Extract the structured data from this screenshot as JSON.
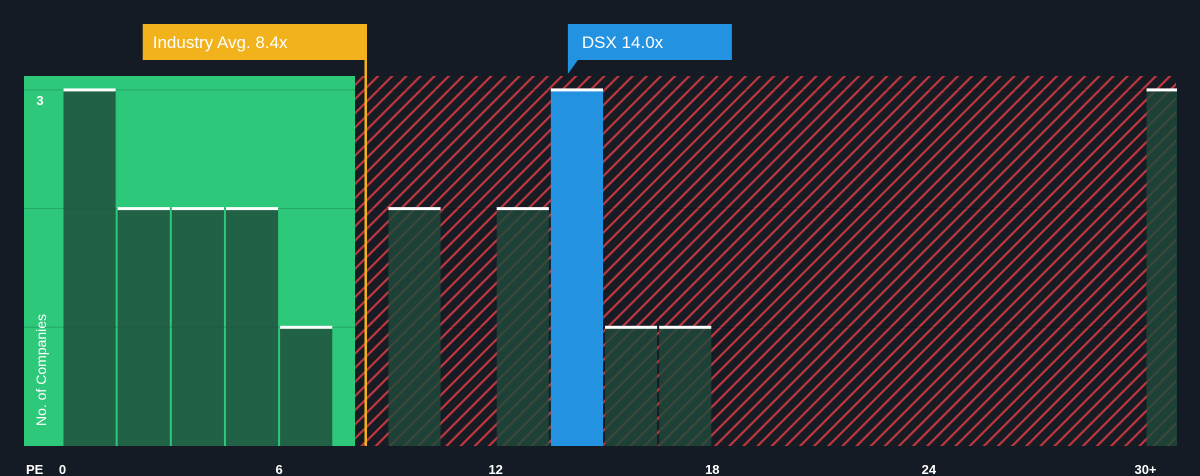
{
  "chart_data": {
    "type": "bar",
    "title": "",
    "xlabel": "PE",
    "ylabel": "No. of Companies",
    "x_tick_labels": [
      "0",
      "6",
      "12",
      "18",
      "24",
      "30+"
    ],
    "x_ticks": [
      0,
      6,
      12,
      18,
      24,
      30
    ],
    "y_tick_labels": [
      "3"
    ],
    "ylim": [
      0,
      3.1
    ],
    "xlim": [
      -0.6,
      30.9
    ],
    "grid": true,
    "bins": [
      {
        "x0": 0.0,
        "x1": 1.5,
        "count": 3
      },
      {
        "x0": 1.5,
        "x1": 3.0,
        "count": 2
      },
      {
        "x0": 3.0,
        "x1": 4.5,
        "count": 2
      },
      {
        "x0": 4.5,
        "x1": 6.0,
        "count": 2
      },
      {
        "x0": 6.0,
        "x1": 7.5,
        "count": 1
      },
      {
        "x0": 9.0,
        "x1": 10.5,
        "count": 2
      },
      {
        "x0": 12.0,
        "x1": 13.5,
        "count": 2
      },
      {
        "x0": 13.5,
        "x1": 15.0,
        "count": 3,
        "highlight": true
      },
      {
        "x0": 15.0,
        "x1": 16.5,
        "count": 1
      },
      {
        "x0": 16.5,
        "x1": 18.0,
        "count": 1
      },
      {
        "x0": 30.0,
        "x1": 30.9,
        "count": 3
      }
    ],
    "industry_avg": {
      "label": "Industry Avg. 8.4x",
      "value": 8.4
    },
    "company": {
      "label": "DSX 14.0x",
      "value": 14.0
    },
    "colors": {
      "background": "#151b24",
      "fair_zone": "#2ec87a",
      "overvalued_hatch": "#c0373f",
      "bar_fill": "#1e4a3a",
      "bar_cap": "#ffffff",
      "highlight_bar": "#2392e1",
      "industry_line": "#f2b21b",
      "company_callout": "#2392e1"
    }
  }
}
